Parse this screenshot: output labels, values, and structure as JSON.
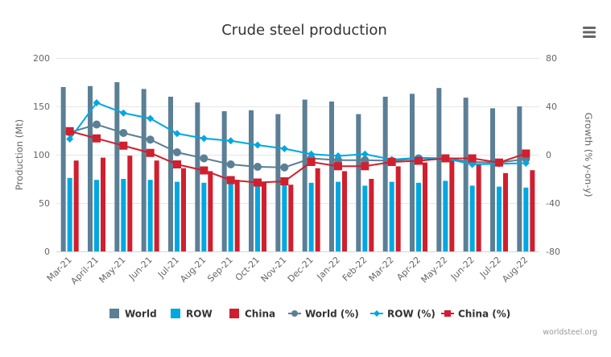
{
  "chart_data": {
    "type": "bar",
    "title": "Crude steel production",
    "xlabel": "",
    "ylabel": "Production (Mt)",
    "y2label": "Growth (% y-on-y)",
    "ylim": [
      0,
      200
    ],
    "y2lim": [
      -80,
      80
    ],
    "yticks": [
      "0",
      "50",
      "100",
      "150",
      "200"
    ],
    "y2ticks": [
      "-80",
      "-40",
      "0",
      "40",
      "80"
    ],
    "grid": true,
    "legend_position": "bottom",
    "categories": [
      "Mar-21",
      "April-21",
      "May-21",
      "Jun-21",
      "Jul-21",
      "Aug-21",
      "Sep-21",
      "Oct-21",
      "Nov-21",
      "Dec-21",
      "Jan-22",
      "Feb-22",
      "Mar-22",
      "Apr-22",
      "May-22",
      "Jun-22",
      "Jul-22",
      "Aug-22"
    ],
    "series": [
      {
        "name": "World",
        "kind": "bar",
        "axis": "left",
        "color": "#5b7f95",
        "values": [
          170,
          171,
          175,
          168,
          160,
          154,
          145,
          146,
          142,
          157,
          155,
          142,
          160,
          163,
          169,
          159,
          148,
          150
        ]
      },
      {
        "name": "ROW",
        "kind": "bar",
        "axis": "left",
        "color": "#00a8e1",
        "values": [
          76,
          74,
          75,
          74,
          72,
          71,
          71,
          69,
          69,
          71,
          72,
          68,
          72,
          71,
          73,
          68,
          67,
          66
        ]
      },
      {
        "name": "China",
        "kind": "bar",
        "axis": "left",
        "color": "#d01f2e",
        "values": [
          94,
          97,
          99,
          94,
          86,
          83,
          74,
          71,
          69,
          86,
          83,
          75,
          88,
          92,
          95,
          91,
          81,
          84
        ]
      },
      {
        "name": "World (%)",
        "kind": "line",
        "marker": "circle",
        "axis": "right",
        "color": "#5b7f95",
        "values": [
          18.5,
          25,
          18,
          12.5,
          2,
          -3,
          -8,
          -10,
          -10.5,
          -3,
          -4.5,
          -4.5,
          -5,
          -3,
          -3,
          -6,
          -6.5,
          -3.5
        ]
      },
      {
        "name": "ROW (%)",
        "kind": "line",
        "marker": "diamond",
        "axis": "right",
        "color": "#00a8e1",
        "values": [
          13,
          43,
          34.5,
          30,
          17.5,
          13.5,
          11.5,
          8,
          5,
          0.5,
          -1,
          0.5,
          -4,
          -2.5,
          -3,
          -8,
          -7.5,
          -7
        ]
      },
      {
        "name": "China (%)",
        "kind": "line",
        "marker": "square",
        "axis": "right",
        "color": "#d01f2e",
        "values": [
          19.5,
          13.5,
          7.5,
          1.5,
          -8,
          -13,
          -21,
          -23,
          -22,
          -6,
          -9.5,
          -9.5,
          -6,
          -5,
          -3,
          -3,
          -6.5,
          1
        ]
      }
    ]
  },
  "menu": {
    "icon": "hamburger-menu-icon"
  },
  "credit": "worldsteel.org"
}
